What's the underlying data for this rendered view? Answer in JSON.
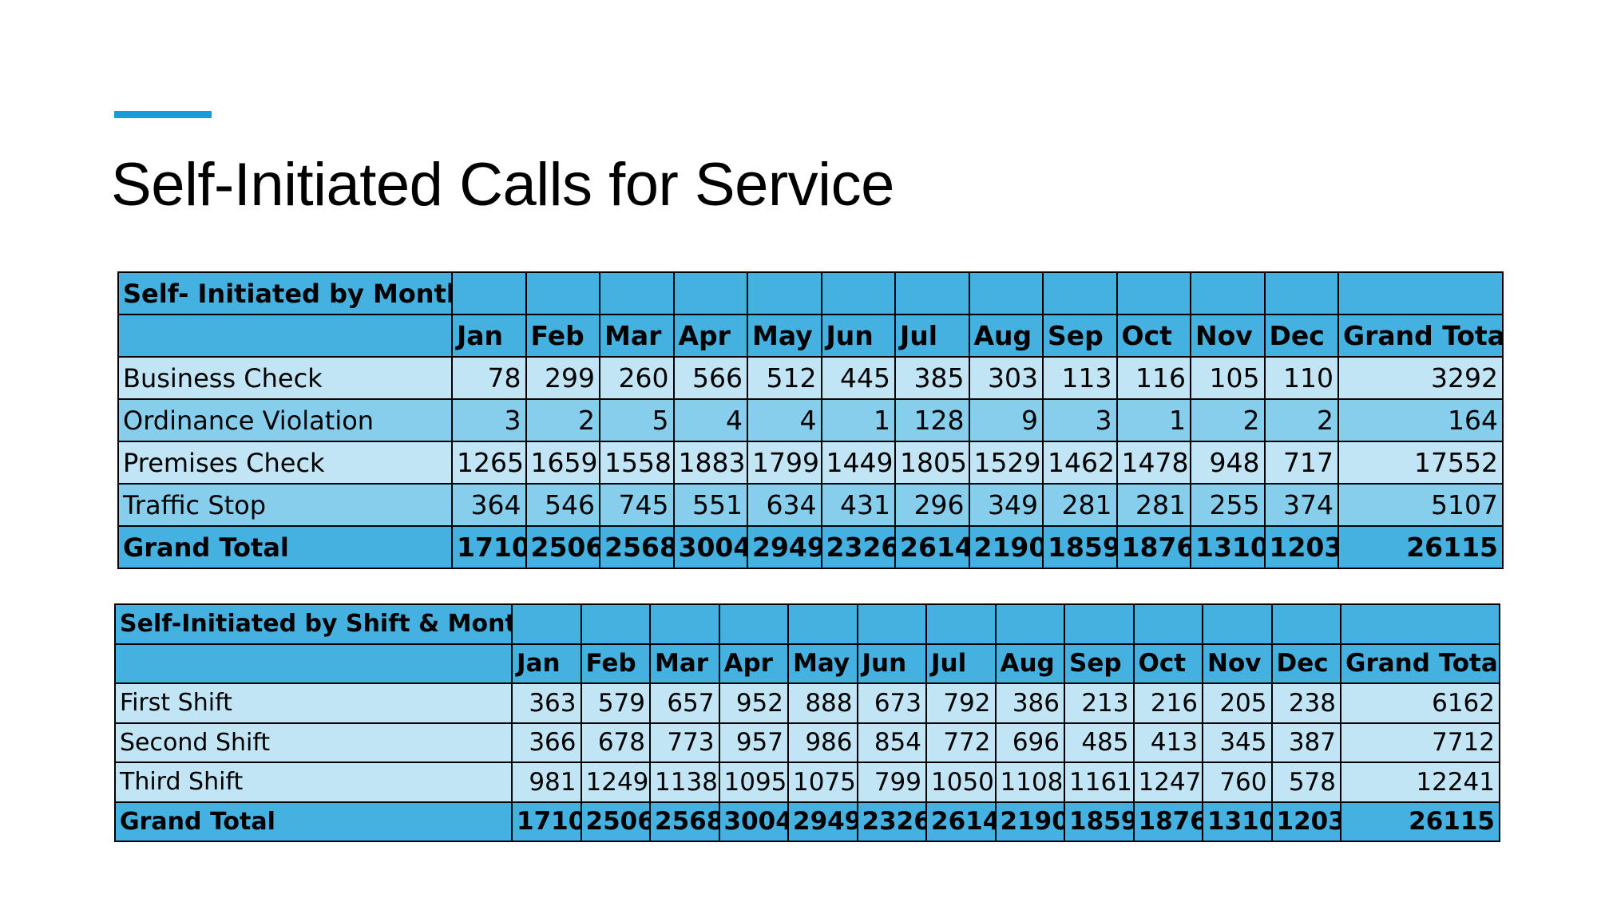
{
  "slide": {
    "title": "Self-Initiated Calls for Service"
  },
  "table_month": {
    "caption": "Self- Initiated by Month",
    "columns": [
      "Jan",
      "Feb",
      "Mar",
      "Apr",
      "May",
      "Jun",
      "Jul",
      "Aug",
      "Sep",
      "Oct",
      "Nov",
      "Dec",
      "Grand Total"
    ],
    "rows": [
      {
        "label": "Business Check",
        "values": [
          "78",
          "299",
          "260",
          "566",
          "512",
          "445",
          "385",
          "303",
          "113",
          "116",
          "105",
          "110",
          "3292"
        ]
      },
      {
        "label": "Ordinance Violation",
        "values": [
          "3",
          "2",
          "5",
          "4",
          "4",
          "1",
          "128",
          "9",
          "3",
          "1",
          "2",
          "2",
          "164"
        ]
      },
      {
        "label": "Premises Check",
        "values": [
          "1265",
          "1659",
          "1558",
          "1883",
          "1799",
          "1449",
          "1805",
          "1529",
          "1462",
          "1478",
          "948",
          "717",
          "17552"
        ]
      },
      {
        "label": "Traffic Stop",
        "values": [
          "364",
          "546",
          "745",
          "551",
          "634",
          "431",
          "296",
          "349",
          "281",
          "281",
          "255",
          "374",
          "5107"
        ]
      }
    ],
    "total": {
      "label": "Grand Total",
      "values": [
        "1710",
        "2506",
        "2568",
        "3004",
        "2949",
        "2326",
        "2614",
        "2190",
        "1859",
        "1876",
        "1310",
        "1203",
        "26115"
      ]
    }
  },
  "table_shift": {
    "caption": "Self-Initiated by Shift & Month",
    "columns": [
      "Jan",
      "Feb",
      "Mar",
      "Apr",
      "May",
      "Jun",
      "Jul",
      "Aug",
      "Sep",
      "Oct",
      "Nov",
      "Dec",
      "Grand Total"
    ],
    "rows": [
      {
        "label": "First Shift",
        "values": [
          "363",
          "579",
          "657",
          "952",
          "888",
          "673",
          "792",
          "386",
          "213",
          "216",
          "205",
          "238",
          "6162"
        ]
      },
      {
        "label": "Second Shift",
        "values": [
          "366",
          "678",
          "773",
          "957",
          "986",
          "854",
          "772",
          "696",
          "485",
          "413",
          "345",
          "387",
          "7712"
        ]
      },
      {
        "label": "Third Shift",
        "values": [
          "981",
          "1249",
          "1138",
          "1095",
          "1075",
          "799",
          "1050",
          "1108",
          "1161",
          "1247",
          "760",
          "578",
          "12241"
        ]
      }
    ],
    "total": {
      "label": "Grand Total",
      "values": [
        "1710",
        "2506",
        "2568",
        "3004",
        "2949",
        "2326",
        "2614",
        "2190",
        "1859",
        "1876",
        "1310",
        "1203",
        "26115"
      ]
    }
  },
  "colors": {
    "accent": "#1a9ad7",
    "header_fill": "#45b1e1",
    "row_light": "#c2e5f5",
    "row_mid": "#87ceed"
  }
}
